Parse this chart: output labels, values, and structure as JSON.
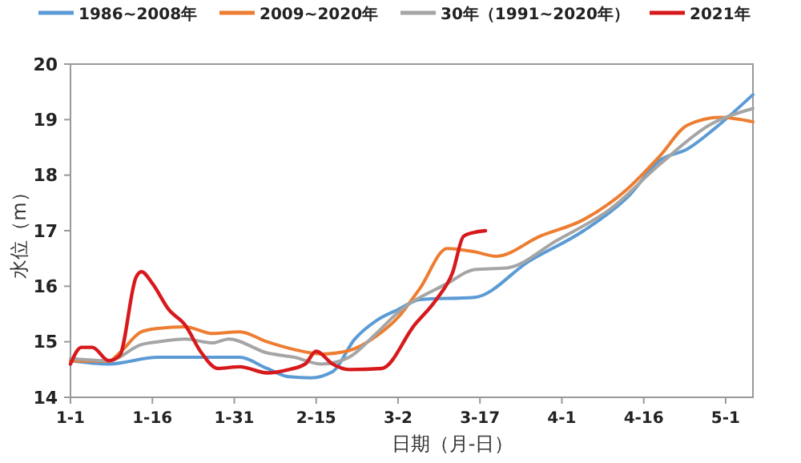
{
  "chart_data": {
    "type": "line",
    "xlabel": "日期（月-日）",
    "ylabel": "水位（m）",
    "legend": "top",
    "grid": false,
    "marker": "none",
    "line_style": "solid",
    "xlim": [
      "--01-01",
      "--05-06"
    ],
    "ylim": [
      14,
      20
    ],
    "yticks": [
      14,
      15,
      16,
      17,
      18,
      19,
      20
    ],
    "xticks": [
      {
        "value": "--01-01",
        "label": "1-1"
      },
      {
        "value": "--01-16",
        "label": "1-16"
      },
      {
        "value": "--01-31",
        "label": "1-31"
      },
      {
        "value": "--02-15",
        "label": "2-15"
      },
      {
        "value": "--03-02",
        "label": "3-2"
      },
      {
        "value": "--03-17",
        "label": "3-17"
      },
      {
        "value": "--04-01",
        "label": "4-1"
      },
      {
        "value": "--04-16",
        "label": "4-16"
      },
      {
        "value": "--05-01",
        "label": "5-1"
      }
    ],
    "series": [
      {
        "name": "1986~2008年",
        "color": "#5b9bd5",
        "x": [
          "--01-01",
          "--01-08",
          "--01-17",
          "--01-22",
          "--01-27",
          "--02-01",
          "--02-06",
          "--02-10",
          "--02-14",
          "--02-18",
          "--02-22",
          "--02-26",
          "--03-02",
          "--03-06",
          "--03-16",
          "--03-26",
          "--04-05",
          "--04-13",
          "--04-19",
          "--04-24",
          "--04-29",
          "--05-06"
        ],
        "values": [
          14.66,
          14.6,
          14.72,
          14.72,
          14.72,
          14.72,
          14.52,
          14.37,
          14.35,
          14.46,
          15.04,
          15.38,
          15.58,
          15.76,
          15.8,
          16.45,
          17.0,
          17.6,
          18.27,
          18.47,
          18.84,
          19.45
        ]
      },
      {
        "name": "2009~2020年",
        "color": "#ed7d31",
        "x": [
          "--01-01",
          "--01-08",
          "--01-10",
          "--01-14",
          "--01-17",
          "--01-22",
          "--01-27",
          "--02-01",
          "--02-06",
          "--02-11",
          "--02-16",
          "--02-21",
          "--02-26",
          "--03-02",
          "--03-06",
          "--03-11",
          "--03-16",
          "--03-20",
          "--03-28",
          "--04-05",
          "--04-13",
          "--04-19",
          "--04-24",
          "--04-30",
          "--05-06"
        ],
        "values": [
          14.66,
          14.65,
          14.8,
          15.18,
          15.24,
          15.27,
          15.15,
          15.18,
          15.0,
          14.86,
          14.78,
          14.84,
          15.1,
          15.44,
          15.96,
          16.68,
          16.62,
          16.54,
          16.9,
          17.2,
          17.75,
          18.35,
          18.9,
          19.04,
          18.96
        ]
      },
      {
        "name": "30年（1991~2020年）",
        "color": "#a5a5a5",
        "x": [
          "--01-01",
          "--01-08",
          "--01-14",
          "--01-17",
          "--01-22",
          "--01-27",
          "--01-30",
          "--02-06",
          "--02-11",
          "--02-16",
          "--02-21",
          "--02-26",
          "--03-02",
          "--03-11",
          "--03-16",
          "--03-22",
          "--03-31",
          "--04-10",
          "--04-19",
          "--04-28",
          "--05-06"
        ],
        "values": [
          14.7,
          14.66,
          14.95,
          15.0,
          15.05,
          14.98,
          15.05,
          14.8,
          14.72,
          14.6,
          14.72,
          15.15,
          15.53,
          16.05,
          16.3,
          16.33,
          16.82,
          17.4,
          18.2,
          18.9,
          19.2
        ]
      },
      {
        "name": "2021年",
        "color": "#d7191c",
        "x": [
          "--01-01",
          "--01-03",
          "--01-05",
          "--01-08",
          "--01-10",
          "--01-13",
          "--01-14",
          "--01-16",
          "--01-19",
          "--01-22",
          "--01-25",
          "--01-28",
          "--02-01",
          "--02-06",
          "--02-10",
          "--02-13",
          "--02-15",
          "--02-18",
          "--02-21",
          "--02-27",
          "--03-05",
          "--03-09",
          "--03-12",
          "--03-14",
          "--03-16",
          "--03-18"
        ],
        "values": [
          14.6,
          14.9,
          14.9,
          14.66,
          14.75,
          16.16,
          16.26,
          16.05,
          15.58,
          15.3,
          14.8,
          14.52,
          14.55,
          14.44,
          14.5,
          14.6,
          14.83,
          14.6,
          14.5,
          14.52,
          15.3,
          15.76,
          16.25,
          16.9,
          16.97,
          17.0
        ]
      }
    ]
  }
}
